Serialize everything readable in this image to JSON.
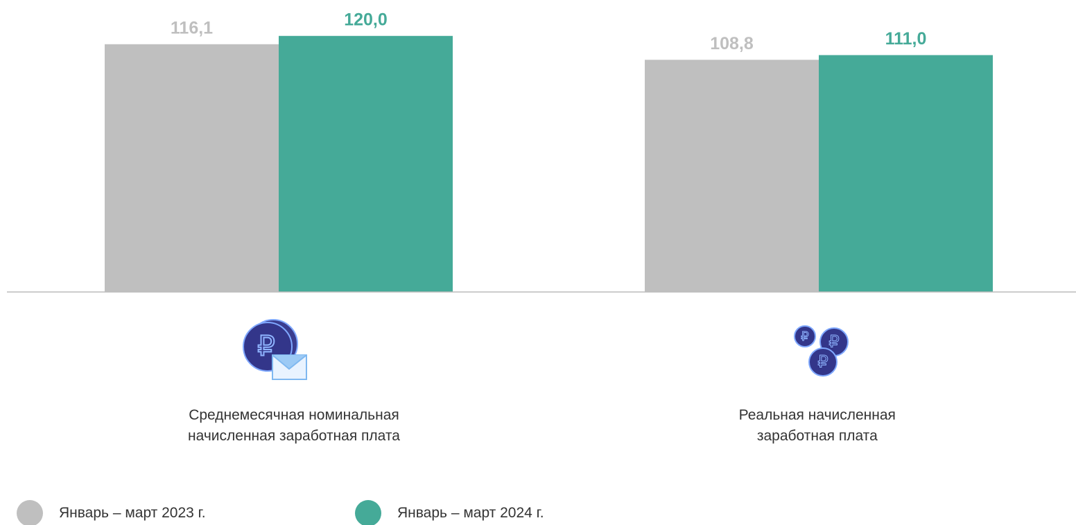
{
  "chart_data": {
    "type": "bar",
    "categories": [
      "Среднемесячная номинальная\nначисленная заработная плата",
      "Реальная начисленная\nзаработная плата"
    ],
    "series": [
      {
        "name": "Январь – март 2023 г.",
        "color": "#bfbfbf",
        "values": [
          116.1,
          108.8
        ],
        "value_labels": [
          "116,1",
          "108,8"
        ]
      },
      {
        "name": "Январь – март 2024 г.",
        "color": "#45aa98",
        "values": [
          120.0,
          111.0
        ],
        "value_labels": [
          "120,0",
          "111,0"
        ]
      }
    ],
    "ylim": [
      0,
      130
    ]
  }
}
